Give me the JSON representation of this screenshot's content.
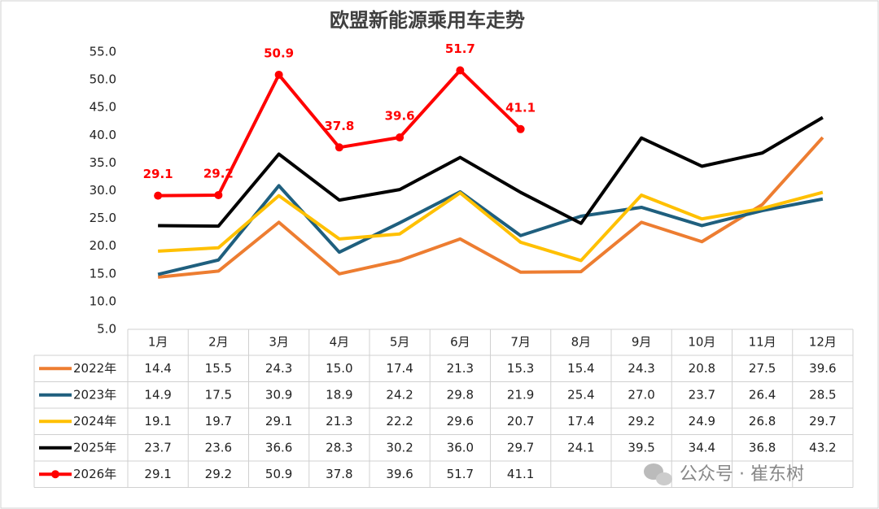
{
  "chart_data": {
    "type": "line",
    "title": "欧盟新能源乘用车走势",
    "categories": [
      "1月",
      "2月",
      "3月",
      "4月",
      "5月",
      "6月",
      "7月",
      "8月",
      "9月",
      "10月",
      "11月",
      "12月"
    ],
    "ylim": [
      5,
      55
    ],
    "yticks": [
      {
        "value": 5,
        "label": "5.0"
      },
      {
        "value": 10,
        "label": "10.0"
      },
      {
        "value": 15,
        "label": "15.0"
      },
      {
        "value": 20,
        "label": "20.0"
      },
      {
        "value": 25,
        "label": "25.0"
      },
      {
        "value": 30,
        "label": "30.0"
      },
      {
        "value": 35,
        "label": "35.0"
      },
      {
        "value": 40,
        "label": "40.0"
      },
      {
        "value": 45,
        "label": "45.0"
      },
      {
        "value": 50,
        "label": "50.0"
      },
      {
        "value": 55,
        "label": "55.0"
      }
    ],
    "grid": false,
    "series": [
      {
        "name": "2022年",
        "color": "#ED7D31",
        "marker": false,
        "values": [
          14.4,
          15.5,
          24.3,
          15.0,
          17.4,
          21.3,
          15.3,
          15.4,
          24.3,
          20.8,
          27.5,
          39.6
        ],
        "value_labels": [
          "14.4",
          "15.5",
          "24.3",
          "15.0",
          "17.4",
          "21.3",
          "15.3",
          "15.4",
          "24.3",
          "20.8",
          "27.5",
          "39.6"
        ]
      },
      {
        "name": "2023年",
        "color": "#1F5F7E",
        "marker": false,
        "values": [
          14.9,
          17.5,
          30.9,
          18.9,
          24.2,
          29.8,
          21.9,
          25.4,
          27.0,
          23.7,
          26.4,
          28.5
        ],
        "value_labels": [
          "14.9",
          "17.5",
          "30.9",
          "18.9",
          "24.2",
          "29.8",
          "21.9",
          "25.4",
          "27.0",
          "23.7",
          "26.4",
          "28.5"
        ]
      },
      {
        "name": "2024年",
        "color": "#FFC000",
        "marker": false,
        "values": [
          19.1,
          19.7,
          29.1,
          21.3,
          22.2,
          29.6,
          20.7,
          17.4,
          29.2,
          24.9,
          26.8,
          29.7
        ],
        "value_labels": [
          "19.1",
          "19.7",
          "29.1",
          "21.3",
          "22.2",
          "29.6",
          "20.7",
          "17.4",
          "29.2",
          "24.9",
          "26.8",
          "29.7"
        ]
      },
      {
        "name": "2025年",
        "color": "#000000",
        "marker": false,
        "values": [
          23.7,
          23.6,
          36.6,
          28.3,
          30.2,
          36.0,
          29.7,
          24.1,
          39.5,
          34.4,
          36.8,
          43.2
        ],
        "value_labels": [
          "23.7",
          "23.6",
          "36.6",
          "28.3",
          "30.2",
          "36.0",
          "29.7",
          "24.1",
          "39.5",
          "34.4",
          "36.8",
          "43.2"
        ]
      },
      {
        "name": "2026年",
        "color": "#FF0000",
        "marker": true,
        "values": [
          29.1,
          29.2,
          50.9,
          37.8,
          39.6,
          51.7,
          41.1,
          null,
          null,
          null,
          null,
          null
        ],
        "value_labels": [
          "29.1",
          "29.2",
          "50.9",
          "37.8",
          "39.6",
          "51.7",
          "41.1",
          null,
          null,
          null,
          null,
          null
        ]
      }
    ]
  },
  "watermark": "公众号 · 崔东树"
}
